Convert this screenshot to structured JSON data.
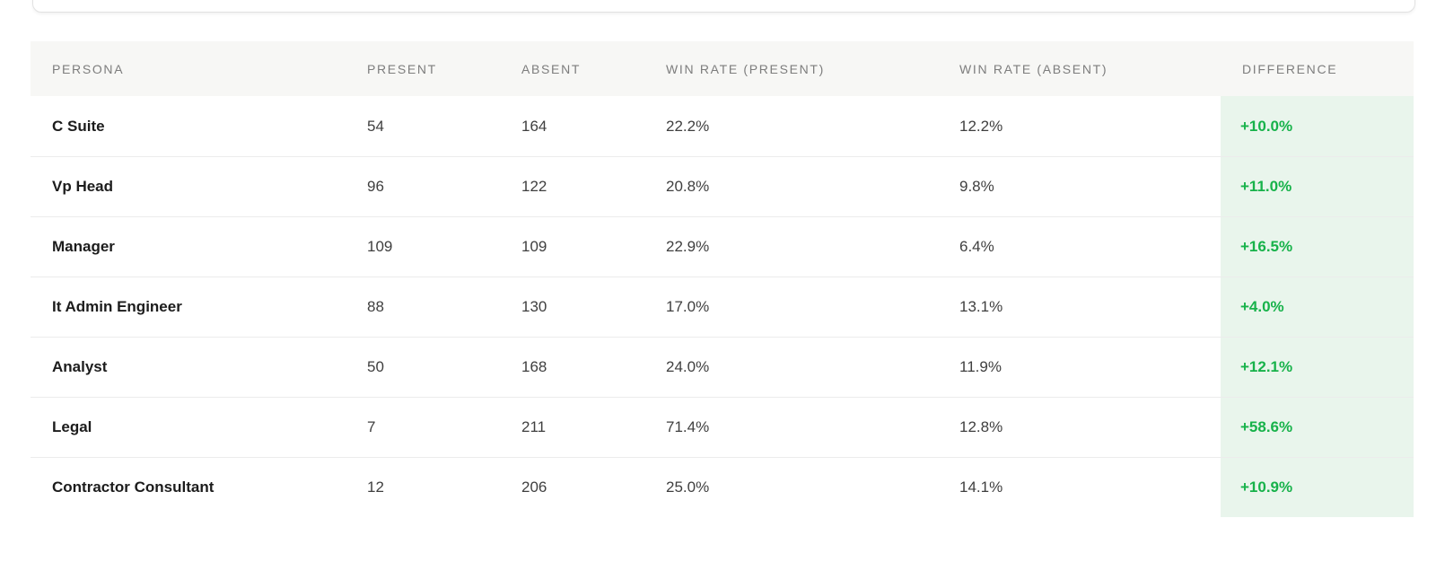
{
  "colors": {
    "positive_text": "#17b24a",
    "positive_bg": "#e9f5ec",
    "header_bg": "#f7f7f5",
    "row_border": "#ececec"
  },
  "table": {
    "columns": [
      {
        "key": "persona",
        "label": "PERSONA"
      },
      {
        "key": "present",
        "label": "PRESENT"
      },
      {
        "key": "absent",
        "label": "ABSENT"
      },
      {
        "key": "win_rate_present",
        "label": "WIN RATE (PRESENT)"
      },
      {
        "key": "win_rate_absent",
        "label": "WIN RATE (ABSENT)"
      },
      {
        "key": "difference",
        "label": "DIFFERENCE"
      }
    ],
    "rows": [
      {
        "persona": "C Suite",
        "present": "54",
        "absent": "164",
        "win_rate_present": "22.2%",
        "win_rate_absent": "12.2%",
        "difference": "+10.0%"
      },
      {
        "persona": "Vp Head",
        "present": "96",
        "absent": "122",
        "win_rate_present": "20.8%",
        "win_rate_absent": "9.8%",
        "difference": "+11.0%"
      },
      {
        "persona": "Manager",
        "present": "109",
        "absent": "109",
        "win_rate_present": "22.9%",
        "win_rate_absent": "6.4%",
        "difference": "+16.5%"
      },
      {
        "persona": "It Admin Engineer",
        "present": "88",
        "absent": "130",
        "win_rate_present": "17.0%",
        "win_rate_absent": "13.1%",
        "difference": "+4.0%"
      },
      {
        "persona": "Analyst",
        "present": "50",
        "absent": "168",
        "win_rate_present": "24.0%",
        "win_rate_absent": "11.9%",
        "difference": "+12.1%"
      },
      {
        "persona": "Legal",
        "present": "7",
        "absent": "211",
        "win_rate_present": "71.4%",
        "win_rate_absent": "12.8%",
        "difference": "+58.6%"
      },
      {
        "persona": "Contractor Consultant",
        "present": "12",
        "absent": "206",
        "win_rate_present": "25.0%",
        "win_rate_absent": "14.1%",
        "difference": "+10.9%"
      }
    ]
  }
}
